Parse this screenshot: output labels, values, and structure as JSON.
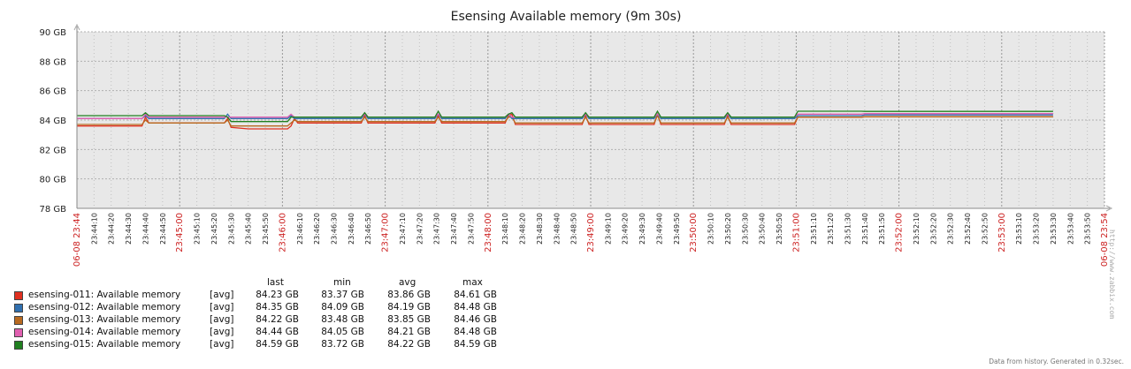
{
  "chart_data": {
    "type": "line",
    "title": "Esensing Available memory (9m 30s)",
    "ylim": [
      78,
      90
    ],
    "y_ticks": [
      "90 GB",
      "88 GB",
      "86 GB",
      "84 GB",
      "82 GB",
      "80 GB",
      "78 GB"
    ],
    "y_tick_values": [
      90,
      88,
      86,
      84,
      82,
      80,
      78
    ],
    "x_start": "06-08 23:44",
    "x_end": "06-08 23:54",
    "x_tick_labels": [
      "06-08 23:44",
      "23:44:10",
      "23:44:20",
      "23:44:30",
      "23:44:40",
      "23:44:50",
      "23:45:00",
      "23:45:10",
      "23:45:20",
      "23:45:30",
      "23:45:40",
      "23:45:50",
      "23:46:00",
      "23:46:10",
      "23:46:20",
      "23:46:30",
      "23:46:40",
      "23:46:50",
      "23:47:00",
      "23:47:10",
      "23:47:20",
      "23:47:30",
      "23:47:40",
      "23:47:50",
      "23:48:00",
      "23:48:10",
      "23:48:20",
      "23:48:30",
      "23:48:40",
      "23:48:50",
      "23:49:00",
      "23:49:10",
      "23:49:20",
      "23:49:30",
      "23:49:40",
      "23:49:50",
      "23:50:00",
      "23:50:10",
      "23:50:20",
      "23:50:30",
      "23:50:40",
      "23:50:50",
      "23:51:00",
      "23:51:10",
      "23:51:20",
      "23:51:30",
      "23:51:40",
      "23:51:50",
      "23:52:00",
      "23:52:10",
      "23:52:20",
      "23:52:30",
      "23:52:40",
      "23:52:50",
      "23:53:00",
      "23:53:10",
      "23:53:20",
      "23:53:30",
      "23:53:40",
      "23:53:50",
      "06-08 23:54"
    ],
    "grid": true,
    "background": "#e8e8e8",
    "series": [
      {
        "name": "esensing-011: Available memory",
        "func": "[avg]",
        "color": "#e03020",
        "last": "84.23 GB",
        "min": "83.37 GB",
        "avg": "83.86 GB",
        "max": "84.61 GB",
        "points": [
          [
            0,
            83.6
          ],
          [
            38,
            83.6
          ],
          [
            40,
            84.2
          ],
          [
            42,
            83.8
          ],
          [
            86,
            83.8
          ],
          [
            88,
            84.1
          ],
          [
            90,
            83.5
          ],
          [
            100,
            83.4
          ],
          [
            123,
            83.4
          ],
          [
            125,
            83.6
          ],
          [
            127,
            84.1
          ],
          [
            129,
            83.8
          ],
          [
            166,
            83.8
          ],
          [
            168,
            84.3
          ],
          [
            170,
            83.8
          ],
          [
            209,
            83.8
          ],
          [
            211,
            84.3
          ],
          [
            213,
            83.8
          ],
          [
            250,
            83.8
          ],
          [
            252,
            84.3
          ],
          [
            254,
            84.4
          ],
          [
            256,
            83.7
          ],
          [
            295,
            83.7
          ],
          [
            297,
            84.3
          ],
          [
            299,
            83.7
          ],
          [
            337,
            83.7
          ],
          [
            339,
            84.4
          ],
          [
            341,
            83.7
          ],
          [
            378,
            83.7
          ],
          [
            380,
            84.3
          ],
          [
            382,
            83.7
          ],
          [
            419,
            83.7
          ],
          [
            421,
            84.2
          ],
          [
            423,
            84.2
          ],
          [
            458,
            84.2
          ],
          [
            460,
            84.23
          ],
          [
            570,
            84.23
          ]
        ]
      },
      {
        "name": "esensing-012: Available memory",
        "func": "[avg]",
        "color": "#3070b0",
        "last": "84.35 GB",
        "min": "84.09 GB",
        "avg": "84.19 GB",
        "max": "84.48 GB",
        "points": [
          [
            0,
            84.1
          ],
          [
            38,
            84.1
          ],
          [
            40,
            84.3
          ],
          [
            42,
            84.1
          ],
          [
            86,
            84.1
          ],
          [
            88,
            84.4
          ],
          [
            90,
            84.1
          ],
          [
            123,
            84.1
          ],
          [
            125,
            84.3
          ],
          [
            127,
            84.1
          ],
          [
            166,
            84.1
          ],
          [
            168,
            84.4
          ],
          [
            170,
            84.1
          ],
          [
            209,
            84.1
          ],
          [
            211,
            84.4
          ],
          [
            213,
            84.1
          ],
          [
            250,
            84.1
          ],
          [
            252,
            84.4
          ],
          [
            254,
            84.1
          ],
          [
            295,
            84.1
          ],
          [
            297,
            84.4
          ],
          [
            299,
            84.1
          ],
          [
            337,
            84.1
          ],
          [
            339,
            84.4
          ],
          [
            341,
            84.1
          ],
          [
            378,
            84.1
          ],
          [
            380,
            84.4
          ],
          [
            382,
            84.1
          ],
          [
            419,
            84.1
          ],
          [
            421,
            84.3
          ],
          [
            458,
            84.3
          ],
          [
            460,
            84.35
          ],
          [
            570,
            84.35
          ]
        ]
      },
      {
        "name": "esensing-013: Available memory",
        "func": "[avg]",
        "color": "#b86a20",
        "last": "84.22 GB",
        "min": "83.48 GB",
        "avg": "83.85 GB",
        "max": "84.46 GB",
        "points": [
          [
            0,
            83.7
          ],
          [
            38,
            83.7
          ],
          [
            40,
            84.0
          ],
          [
            42,
            83.8
          ],
          [
            86,
            83.8
          ],
          [
            88,
            84.0
          ],
          [
            90,
            83.6
          ],
          [
            123,
            83.6
          ],
          [
            125,
            83.8
          ],
          [
            127,
            84.0
          ],
          [
            129,
            83.9
          ],
          [
            166,
            83.9
          ],
          [
            168,
            84.2
          ],
          [
            170,
            83.9
          ],
          [
            209,
            83.9
          ],
          [
            211,
            84.2
          ],
          [
            213,
            83.9
          ],
          [
            250,
            83.9
          ],
          [
            252,
            84.2
          ],
          [
            254,
            84.2
          ],
          [
            256,
            83.8
          ],
          [
            295,
            83.8
          ],
          [
            297,
            84.2
          ],
          [
            299,
            83.8
          ],
          [
            337,
            83.8
          ],
          [
            339,
            84.3
          ],
          [
            341,
            83.8
          ],
          [
            378,
            83.8
          ],
          [
            380,
            84.2
          ],
          [
            382,
            83.8
          ],
          [
            419,
            83.8
          ],
          [
            421,
            84.2
          ],
          [
            458,
            84.2
          ],
          [
            460,
            84.22
          ],
          [
            570,
            84.22
          ]
        ]
      },
      {
        "name": "esensing-014: Available memory",
        "func": "[avg]",
        "color": "#e060b0",
        "last": "84.44 GB",
        "min": "84.05 GB",
        "avg": "84.21 GB",
        "max": "84.48 GB",
        "points": [
          [
            0,
            84.1
          ],
          [
            38,
            84.1
          ],
          [
            40,
            84.4
          ],
          [
            42,
            84.2
          ],
          [
            86,
            84.2
          ],
          [
            88,
            84.2
          ],
          [
            123,
            84.2
          ],
          [
            125,
            84.4
          ],
          [
            127,
            84.2
          ],
          [
            166,
            84.2
          ],
          [
            168,
            84.4
          ],
          [
            170,
            84.2
          ],
          [
            209,
            84.2
          ],
          [
            211,
            84.4
          ],
          [
            213,
            84.2
          ],
          [
            250,
            84.2
          ],
          [
            252,
            84.4
          ],
          [
            254,
            84.2
          ],
          [
            295,
            84.2
          ],
          [
            297,
            84.4
          ],
          [
            299,
            84.2
          ],
          [
            337,
            84.2
          ],
          [
            339,
            84.4
          ],
          [
            341,
            84.2
          ],
          [
            378,
            84.2
          ],
          [
            380,
            84.4
          ],
          [
            382,
            84.2
          ],
          [
            419,
            84.2
          ],
          [
            421,
            84.4
          ],
          [
            458,
            84.4
          ],
          [
            460,
            84.44
          ],
          [
            570,
            84.44
          ]
        ]
      },
      {
        "name": "esensing-015: Available memory",
        "func": "[avg]",
        "color": "#208020",
        "last": "84.59 GB",
        "min": "83.72 GB",
        "avg": "84.22 GB",
        "max": "84.59 GB",
        "points": [
          [
            0,
            84.3
          ],
          [
            38,
            84.3
          ],
          [
            40,
            84.5
          ],
          [
            42,
            84.3
          ],
          [
            86,
            84.3
          ],
          [
            88,
            84.2
          ],
          [
            90,
            83.9
          ],
          [
            123,
            83.9
          ],
          [
            125,
            84.2
          ],
          [
            127,
            84.2
          ],
          [
            166,
            84.2
          ],
          [
            168,
            84.5
          ],
          [
            170,
            84.2
          ],
          [
            209,
            84.2
          ],
          [
            211,
            84.6
          ],
          [
            213,
            84.2
          ],
          [
            250,
            84.2
          ],
          [
            252,
            84.4
          ],
          [
            254,
            84.5
          ],
          [
            256,
            84.2
          ],
          [
            295,
            84.2
          ],
          [
            297,
            84.5
          ],
          [
            299,
            84.2
          ],
          [
            337,
            84.2
          ],
          [
            339,
            84.6
          ],
          [
            341,
            84.2
          ],
          [
            378,
            84.2
          ],
          [
            380,
            84.5
          ],
          [
            382,
            84.2
          ],
          [
            419,
            84.2
          ],
          [
            421,
            84.6
          ],
          [
            458,
            84.6
          ],
          [
            460,
            84.59
          ],
          [
            570,
            84.59
          ]
        ]
      }
    ]
  },
  "legend_headers": {
    "last": "last",
    "min": "min",
    "avg": "avg",
    "max": "max"
  },
  "footer": "Data from history. Generated in 0.32sec.",
  "watermark": "http://www.zabbix.com"
}
